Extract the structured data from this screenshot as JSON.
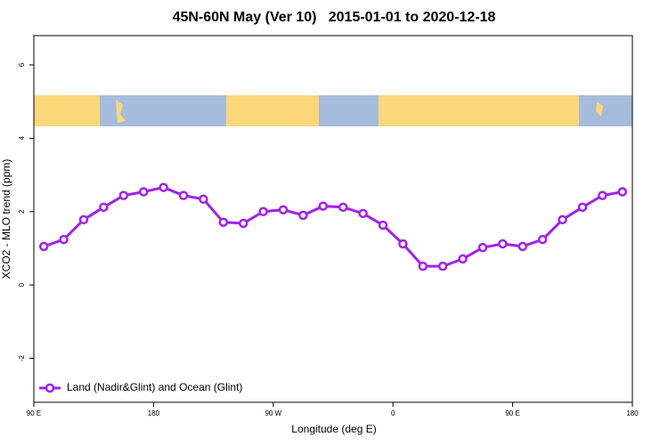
{
  "chart_data": {
    "type": "line",
    "title": "45N-60N May (Ver 10)   2015-01-01 to 2020-12-18",
    "x_label": "Longitude (deg E)",
    "y_label": "XCO2 - MLO trend (ppm)",
    "x": [
      97.5,
      112.5,
      127.5,
      142.5,
      157.5,
      172.5,
      187.5,
      202.5,
      217.5,
      232.5,
      247.5,
      262.5,
      277.5,
      292.5,
      307.5,
      322.5,
      337.5,
      352.5,
      367.5,
      382.5,
      397.5,
      412.5,
      427.5,
      442.5,
      457.5,
      472.5,
      487.5,
      502.5,
      517.5,
      532.5
    ],
    "series": [
      {
        "name": "Land (Nadir&Glint) and Ocean (Glint)",
        "color": "#a020f0",
        "values": [
          1.05,
          1.24,
          1.78,
          2.12,
          2.44,
          2.54,
          2.66,
          2.44,
          2.34,
          1.71,
          1.68,
          2.0,
          2.05,
          1.9,
          2.15,
          2.12,
          1.95,
          1.63,
          1.12,
          0.51,
          0.51,
          0.71,
          1.02,
          1.12,
          1.05,
          1.24,
          1.78,
          2.12,
          2.44,
          2.54
        ]
      }
    ],
    "xlim": [
      90,
      540
    ],
    "ylim": [
      -3.2,
      6.8
    ],
    "xticks": [
      {
        "value": 90,
        "label": "90 E"
      },
      180,
      {
        "value": 270,
        "label": "90 W"
      },
      {
        "value": 360,
        "label": "0"
      },
      {
        "value": 450,
        "label": "90 E"
      },
      {
        "value": 540,
        "label": "180"
      }
    ],
    "yticks": [
      -2,
      0,
      2,
      4,
      6
    ],
    "legend": "bottom-left"
  }
}
